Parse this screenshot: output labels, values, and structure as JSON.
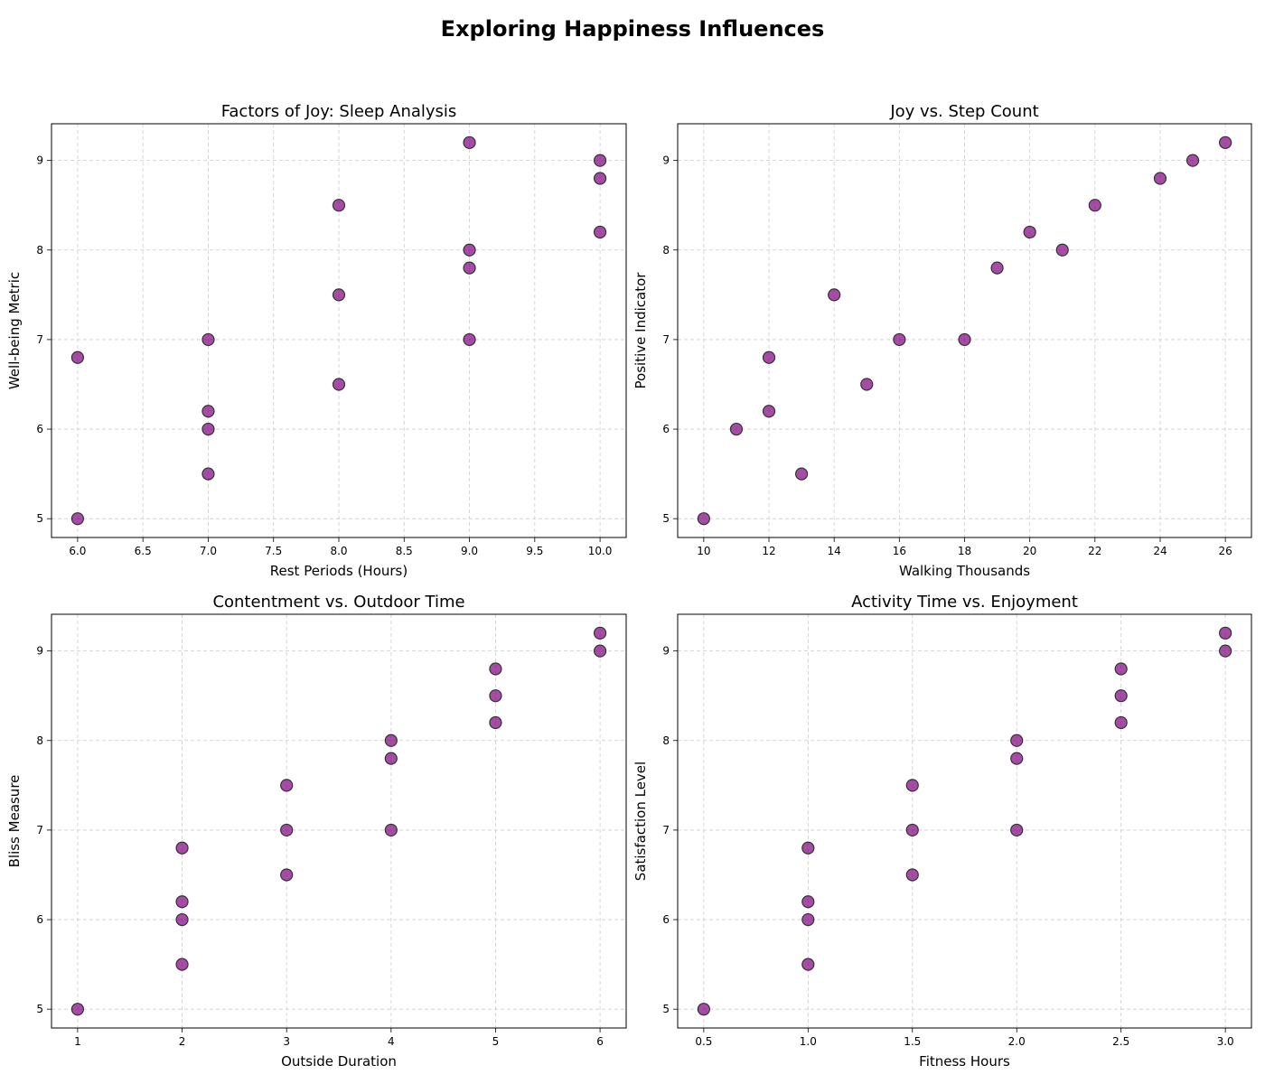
{
  "title": "Exploring Happiness Influences",
  "style": {
    "marker_color": "#800080",
    "marker_edge": "#333333",
    "grid_color": "#cccccc"
  },
  "chart_data": [
    {
      "type": "scatter",
      "title": "Factors of Joy: Sleep Analysis",
      "xlabel": "Rest Periods (Hours)",
      "ylabel": "Well-being Metric",
      "xlim": [
        5.8,
        10.2
      ],
      "ylim": [
        4.79,
        9.41
      ],
      "xticks": [
        "6.0",
        "6.5",
        "7.0",
        "7.5",
        "8.0",
        "8.5",
        "9.0",
        "9.5",
        "10.0"
      ],
      "yticks": [
        "5",
        "6",
        "7",
        "8",
        "9"
      ],
      "grid": true,
      "points": [
        [
          7,
          6.2
        ],
        [
          8,
          7.5
        ],
        [
          9,
          8.0
        ],
        [
          6,
          5.0
        ],
        [
          10,
          9.0
        ],
        [
          7,
          6.0
        ],
        [
          8,
          6.5
        ],
        [
          9,
          7.0
        ],
        [
          7,
          5.5
        ],
        [
          8,
          8.5
        ],
        [
          9,
          7.8
        ],
        [
          10,
          8.2
        ],
        [
          6,
          6.8
        ],
        [
          7,
          7.0
        ],
        [
          10,
          8.8
        ],
        [
          9,
          9.2
        ]
      ]
    },
    {
      "type": "scatter",
      "title": "Joy vs. Step Count",
      "xlabel": "Walking Thousands",
      "ylabel": "Positive Indicator",
      "xlim": [
        9.2,
        26.8
      ],
      "ylim": [
        4.79,
        9.41
      ],
      "xticks": [
        "10",
        "12",
        "14",
        "16",
        "18",
        "20",
        "22",
        "24",
        "26"
      ],
      "yticks": [
        "5",
        "6",
        "7",
        "8",
        "9"
      ],
      "grid": true,
      "points": [
        [
          12,
          6.2
        ],
        [
          14,
          7.5
        ],
        [
          21,
          8.0
        ],
        [
          10,
          5.0
        ],
        [
          25,
          9.0
        ],
        [
          11,
          6.0
        ],
        [
          15,
          6.5
        ],
        [
          16,
          7.0
        ],
        [
          13,
          5.5
        ],
        [
          22,
          8.5
        ],
        [
          19,
          7.8
        ],
        [
          20,
          8.2
        ],
        [
          12,
          6.8
        ],
        [
          18,
          7.0
        ],
        [
          24,
          8.8
        ],
        [
          26,
          9.2
        ]
      ]
    },
    {
      "type": "scatter",
      "title": "Contentment vs. Outdoor Time",
      "xlabel": "Outside Duration",
      "ylabel": "Bliss Measure",
      "xlim": [
        0.75,
        6.25
      ],
      "ylim": [
        4.79,
        9.41
      ],
      "xticks": [
        "1",
        "2",
        "3",
        "4",
        "5",
        "6"
      ],
      "yticks": [
        "5",
        "6",
        "7",
        "8",
        "9"
      ],
      "grid": true,
      "points": [
        [
          2,
          6.2
        ],
        [
          3,
          7.5
        ],
        [
          4,
          8.0
        ],
        [
          1,
          5.0
        ],
        [
          6,
          9.0
        ],
        [
          2,
          6.0
        ],
        [
          3,
          6.5
        ],
        [
          4,
          7.0
        ],
        [
          2,
          5.5
        ],
        [
          5,
          8.5
        ],
        [
          4,
          7.8
        ],
        [
          5,
          8.2
        ],
        [
          2,
          6.8
        ],
        [
          3,
          7.0
        ],
        [
          5,
          8.8
        ],
        [
          6,
          9.2
        ]
      ]
    },
    {
      "type": "scatter",
      "title": "Activity Time vs. Enjoyment",
      "xlabel": "Fitness Hours",
      "ylabel": "Satisfaction Level",
      "xlim": [
        0.375,
        3.125
      ],
      "ylim": [
        4.79,
        9.41
      ],
      "xticks": [
        "0.5",
        "1.0",
        "1.5",
        "2.0",
        "2.5",
        "3.0"
      ],
      "yticks": [
        "5",
        "6",
        "7",
        "8",
        "9"
      ],
      "grid": true,
      "points": [
        [
          1,
          6.2
        ],
        [
          1.5,
          7.5
        ],
        [
          2,
          8.0
        ],
        [
          0.5,
          5.0
        ],
        [
          3,
          9.0
        ],
        [
          1,
          6.0
        ],
        [
          1.5,
          6.5
        ],
        [
          2,
          7.0
        ],
        [
          1,
          5.5
        ],
        [
          2.5,
          8.5
        ],
        [
          2,
          7.8
        ],
        [
          2.5,
          8.2
        ],
        [
          1,
          6.8
        ],
        [
          1.5,
          7.0
        ],
        [
          2.5,
          8.8
        ],
        [
          3,
          9.2
        ]
      ]
    }
  ]
}
